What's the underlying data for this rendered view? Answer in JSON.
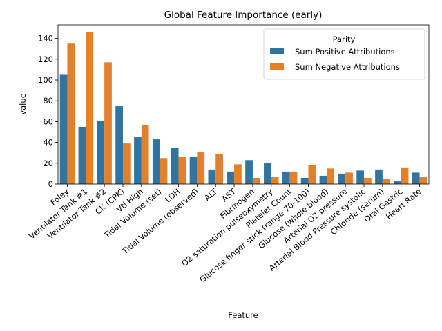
{
  "chart_data": {
    "type": "bar",
    "title": "Global Feature Importance (early)",
    "xlabel": "Feature",
    "ylabel": "value",
    "ylim": [
      0,
      153
    ],
    "yticks": [
      0,
      20,
      40,
      60,
      80,
      100,
      120,
      140
    ],
    "grid": false,
    "categories": [
      "Foley",
      "Ventilator Tank #1",
      "Ventilator Tank #2",
      "CK (CPK)",
      "Vti High",
      "Tidal Volume (set)",
      "LDH",
      "Tidal Volume (observed)",
      "ALT",
      "AST",
      "Fibrinogen",
      "O2 saturation pulseoxymetry",
      "Platelet Count",
      "Glucose finger stick (range 70-100)",
      "Glucose (whole blood)",
      "Arterial O2 pressure",
      "Arterial Blood Pressure systolic",
      "Chloride (serum)",
      "Oral Gastric",
      "Heart Rate"
    ],
    "series": [
      {
        "name": "Sum Positive Attributions",
        "color": "#3274a1",
        "values": [
          105,
          55,
          61,
          75,
          45,
          43,
          35,
          26,
          14,
          12,
          23,
          20,
          12,
          6,
          8,
          10,
          13,
          14,
          3,
          11
        ]
      },
      {
        "name": "Sum Negative Attributions",
        "color": "#e1812c",
        "values": [
          135,
          146,
          117,
          39,
          57,
          25,
          26,
          31,
          29,
          19,
          6,
          7,
          12,
          18,
          15,
          11,
          6,
          5,
          16,
          7
        ]
      }
    ],
    "legend": {
      "title": "Parity",
      "placement": "top-right"
    }
  }
}
